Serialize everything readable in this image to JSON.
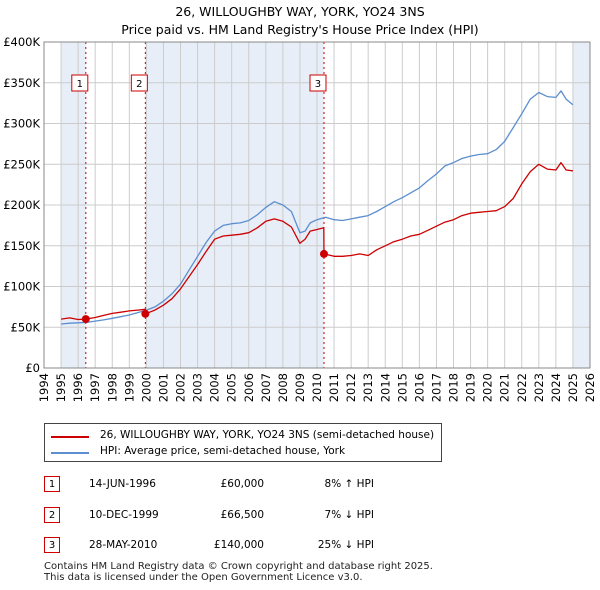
{
  "header": {
    "title_line1": "26, WILLOUGHBY WAY, YORK, YO24 3NS",
    "title_line2": "Price paid vs. HM Land Registry's House Price Index (HPI)"
  },
  "legend": {
    "property_label": "26, WILLOUGHBY WAY, YORK, YO24 3NS (semi-detached house)",
    "hpi_label": "HPI: Average price, semi-detached house, York"
  },
  "sales": [
    {
      "num": "1",
      "date": "14-JUN-1996",
      "price": "£60,000",
      "hpi": "8% ↑ HPI"
    },
    {
      "num": "2",
      "date": "10-DEC-1999",
      "price": "£66,500",
      "hpi": "7% ↓ HPI"
    },
    {
      "num": "3",
      "date": "28-MAY-2010",
      "price": "£140,000",
      "hpi": "25% ↓ HPI"
    }
  ],
  "footer": {
    "line1": "Contains HM Land Registry data © Crown copyright and database right 2025.",
    "line2": "This data is licensed under the Open Government Licence v3.0."
  },
  "colors": {
    "property": "#cc0000",
    "hpi": "#5b8fd0",
    "shade": "#e8eef8",
    "grid": "#cccccc"
  },
  "chart_data": {
    "type": "line",
    "title": "26, WILLOUGHBY WAY, YORK, YO24 3NS — Price paid vs. HM Land Registry's House Price Index (HPI)",
    "xlabel": "",
    "ylabel": "",
    "xlim": [
      1994,
      2026
    ],
    "ylim": [
      0,
      400000
    ],
    "x_ticks": [
      1994,
      1995,
      1996,
      1997,
      1998,
      1999,
      2000,
      2001,
      2002,
      2003,
      2004,
      2005,
      2006,
      2007,
      2008,
      2009,
      2010,
      2011,
      2012,
      2013,
      2014,
      2015,
      2016,
      2017,
      2018,
      2019,
      2020,
      2021,
      2022,
      2023,
      2024,
      2025,
      2026
    ],
    "y_ticks": [
      0,
      50000,
      100000,
      150000,
      200000,
      250000,
      300000,
      350000,
      400000
    ],
    "y_tick_labels": [
      "£0",
      "£50K",
      "£100K",
      "£150K",
      "£200K",
      "£250K",
      "£300K",
      "£350K",
      "£400K"
    ],
    "shaded_ranges": [
      [
        1995.0,
        1996.45
      ],
      [
        1999.94,
        2010.41
      ],
      [
        2025.0,
        2026.0
      ]
    ],
    "transactions": [
      {
        "label": "1",
        "x": 1996.45,
        "y": 60000
      },
      {
        "label": "2",
        "x": 1999.94,
        "y": 66500
      },
      {
        "label": "3",
        "x": 2010.41,
        "y": 140000
      }
    ],
    "series": [
      {
        "name": "26, WILLOUGHBY WAY, YORK, YO24 3NS (semi-detached house)",
        "x": [
          1995.0,
          1995.5,
          1996.0,
          1996.45,
          1997.0,
          1997.5,
          1998.0,
          1998.5,
          1999.0,
          1999.5,
          1999.93,
          1999.94,
          2000.5,
          2001.0,
          2001.5,
          2002.0,
          2002.5,
          2003.0,
          2003.5,
          2004.0,
          2004.5,
          2005.0,
          2005.5,
          2006.0,
          2006.5,
          2007.0,
          2007.5,
          2008.0,
          2008.5,
          2009.0,
          2009.3,
          2009.6,
          2010.0,
          2010.4,
          2010.41,
          2011.0,
          2011.5,
          2012.0,
          2012.5,
          2013.0,
          2013.5,
          2014.0,
          2014.5,
          2015.0,
          2015.5,
          2016.0,
          2016.5,
          2017.0,
          2017.5,
          2018.0,
          2018.5,
          2019.0,
          2019.5,
          2020.0,
          2020.5,
          2021.0,
          2021.5,
          2022.0,
          2022.5,
          2023.0,
          2023.5,
          2024.0,
          2024.3,
          2024.6,
          2025.0
        ],
        "y": [
          60000,
          61500,
          59500,
          60000,
          62000,
          64500,
          67000,
          68500,
          70000,
          71000,
          72000,
          66500,
          71000,
          77000,
          85000,
          97000,
          112000,
          127000,
          143000,
          158000,
          162000,
          163000,
          164000,
          166000,
          172000,
          180000,
          183000,
          180000,
          173000,
          153000,
          158000,
          168000,
          170000,
          172000,
          140000,
          137000,
          137000,
          138000,
          140000,
          138000,
          145000,
          150000,
          155000,
          158000,
          162000,
          164000,
          169000,
          174000,
          179000,
          182000,
          187000,
          190000,
          191000,
          192000,
          193000,
          198000,
          208000,
          226000,
          241000,
          250000,
          244000,
          243000,
          252000,
          243000,
          242000
        ]
      },
      {
        "name": "HPI: Average price, semi-detached house, York",
        "x": [
          1995.0,
          1995.5,
          1996.0,
          1996.5,
          1997.0,
          1997.5,
          1998.0,
          1998.5,
          1999.0,
          1999.5,
          2000.0,
          2000.5,
          2001.0,
          2001.5,
          2002.0,
          2002.5,
          2003.0,
          2003.5,
          2004.0,
          2004.5,
          2005.0,
          2005.5,
          2006.0,
          2006.5,
          2007.0,
          2007.5,
          2008.0,
          2008.5,
          2009.0,
          2009.3,
          2009.6,
          2010.0,
          2010.5,
          2011.0,
          2011.5,
          2012.0,
          2012.5,
          2013.0,
          2013.5,
          2014.0,
          2014.5,
          2015.0,
          2015.5,
          2016.0,
          2016.5,
          2017.0,
          2017.5,
          2018.0,
          2018.5,
          2019.0,
          2019.5,
          2020.0,
          2020.5,
          2021.0,
          2021.5,
          2022.0,
          2022.5,
          2023.0,
          2023.5,
          2024.0,
          2024.3,
          2024.6,
          2025.0
        ],
        "y": [
          54000,
          55000,
          55500,
          56000,
          57500,
          59000,
          61000,
          63000,
          65000,
          68000,
          71000,
          75000,
          82000,
          91000,
          103000,
          120000,
          137000,
          154000,
          168000,
          175000,
          177000,
          178000,
          181000,
          188000,
          197000,
          204000,
          200000,
          192000,
          166000,
          168000,
          178000,
          182000,
          185000,
          182000,
          181000,
          183000,
          185000,
          187000,
          192000,
          198000,
          204000,
          209000,
          215000,
          221000,
          230000,
          238000,
          248000,
          252000,
          257000,
          260000,
          262000,
          263000,
          268000,
          278000,
          295000,
          312000,
          330000,
          338000,
          333000,
          332000,
          340000,
          330000,
          323000
        ]
      }
    ]
  }
}
